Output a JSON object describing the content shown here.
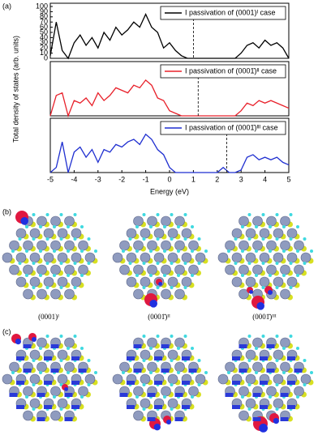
{
  "panels": {
    "a": "(a)",
    "b": "(b)",
    "c": "(c)"
  },
  "captions": [
    "(0001)ᴵ",
    "(0001̄)ᴵᴵ",
    "(0001̄)ᴵᴵᴵ"
  ],
  "chart_data": [
    {
      "type": "line",
      "ylabel": "Total density of states (arb. units)",
      "x": [
        -5,
        -4.75,
        -4.5,
        -4.25,
        -4,
        -3.75,
        -3.5,
        -3.25,
        -3,
        -2.75,
        -2.5,
        -2.25,
        -2,
        -1.75,
        -1.5,
        -1.25,
        -1,
        -0.75,
        -0.5,
        -0.25,
        0,
        0.25,
        0.5,
        0.75,
        1,
        1.25,
        1.5,
        1.75,
        2,
        2.25,
        2.5,
        2.75,
        3,
        3.25,
        3.5,
        3.75,
        4,
        4.25,
        4.5,
        4.75,
        5
      ],
      "series": [
        {
          "name": "I passivation of (0001)ᴵ case",
          "color": "#000000",
          "values": [
            5,
            70,
            15,
            0,
            30,
            45,
            25,
            40,
            20,
            50,
            35,
            60,
            45,
            55,
            70,
            60,
            85,
            60,
            50,
            20,
            30,
            15,
            5,
            0,
            0,
            0,
            0,
            0,
            0,
            0,
            0,
            0,
            10,
            25,
            30,
            20,
            35,
            25,
            30,
            20,
            0
          ]
        }
      ],
      "fermi_level": 1.0,
      "xlim": [
        -5,
        5
      ],
      "ylim": [
        0,
        100
      ],
      "yticks": [
        0,
        10,
        20,
        30,
        40,
        50,
        60,
        70,
        80,
        90,
        100
      ]
    },
    {
      "type": "line",
      "x": [
        -5,
        -4.75,
        -4.5,
        -4.25,
        -4,
        -3.75,
        -3.5,
        -3.25,
        -3,
        -2.75,
        -2.5,
        -2.25,
        -2,
        -1.75,
        -1.5,
        -1.25,
        -1,
        -0.75,
        -0.5,
        -0.25,
        0,
        0.25,
        0.5,
        0.75,
        1,
        1.25,
        1.5,
        1.75,
        2,
        2.25,
        2.5,
        2.75,
        3,
        3.25,
        3.5,
        3.75,
        4,
        4.25,
        4.5,
        4.75,
        5
      ],
      "series": [
        {
          "name": "I passivation of (0001̄)ᴵᴵ case",
          "color": "#e8202a",
          "values": [
            0,
            40,
            45,
            0,
            30,
            25,
            35,
            20,
            45,
            30,
            40,
            55,
            50,
            45,
            60,
            55,
            70,
            60,
            35,
            30,
            10,
            5,
            0,
            0,
            0,
            0,
            0,
            0,
            0,
            0,
            0,
            0,
            10,
            25,
            20,
            30,
            25,
            30,
            25,
            20,
            15
          ]
        }
      ],
      "fermi_level": 1.2,
      "xlim": [
        -5,
        5
      ],
      "ylim": [
        0,
        100
      ]
    },
    {
      "type": "line",
      "xlabel": "Energy (eV)",
      "x": [
        -5,
        -4.75,
        -4.5,
        -4.25,
        -4,
        -3.75,
        -3.5,
        -3.25,
        -3,
        -2.75,
        -2.5,
        -2.25,
        -2,
        -1.75,
        -1.5,
        -1.25,
        -1,
        -0.75,
        -0.5,
        -0.25,
        0,
        0.25,
        0.5,
        0.75,
        1,
        1.25,
        1.5,
        1.75,
        2,
        2.25,
        2.5,
        2.75,
        3,
        3.25,
        3.5,
        3.75,
        4,
        4.25,
        4.5,
        4.75,
        5
      ],
      "series": [
        {
          "name": "I passivation of (0001̄)ᴵᴵᴵ case",
          "color": "#1f2fd0",
          "values": [
            0,
            10,
            60,
            0,
            40,
            50,
            30,
            45,
            20,
            45,
            40,
            55,
            50,
            60,
            65,
            55,
            75,
            65,
            45,
            35,
            10,
            0,
            0,
            0,
            0,
            0,
            0,
            0,
            0,
            10,
            0,
            0,
            5,
            30,
            35,
            25,
            30,
            25,
            30,
            20,
            15
          ]
        }
      ],
      "fermi_level": 2.4,
      "xlim": [
        -5,
        5
      ],
      "ylim": [
        0,
        100
      ],
      "xticks": [
        -5,
        -4,
        -3,
        -2,
        -1,
        0,
        1,
        2,
        3,
        4,
        5
      ]
    }
  ]
}
